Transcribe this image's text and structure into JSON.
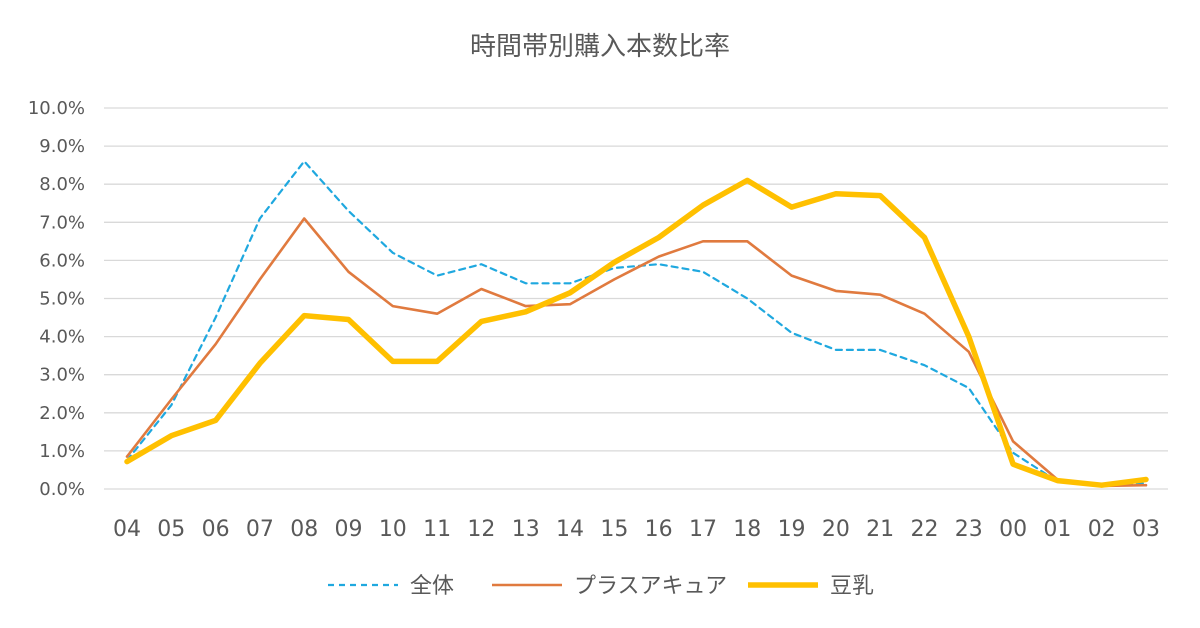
{
  "chart_data": {
    "type": "line",
    "title": "時間帯別購入本数比率",
    "categories": [
      "04",
      "05",
      "06",
      "07",
      "08",
      "09",
      "10",
      "11",
      "12",
      "13",
      "14",
      "15",
      "16",
      "17",
      "18",
      "19",
      "20",
      "21",
      "22",
      "23",
      "00",
      "01",
      "02",
      "03"
    ],
    "ylim": [
      0,
      10
    ],
    "yticks": [
      "0.0%",
      "1.0%",
      "2.0%",
      "3.0%",
      "4.0%",
      "5.0%",
      "6.0%",
      "7.0%",
      "8.0%",
      "9.0%",
      "10.0%"
    ],
    "grid": true,
    "legend_position": "bottom",
    "series": [
      {
        "name": "全体",
        "color": "#1fa8df",
        "style": "dashed",
        "values": [
          0.75,
          2.2,
          4.5,
          7.1,
          8.6,
          7.3,
          6.2,
          5.6,
          5.9,
          5.4,
          5.4,
          5.8,
          5.9,
          5.7,
          5.0,
          4.1,
          3.65,
          3.65,
          3.25,
          2.65,
          0.95,
          0.2,
          0.08,
          0.15
        ]
      },
      {
        "name": "プラスアキュア",
        "color": "#e07a3f",
        "style": "solid",
        "values": [
          0.85,
          2.35,
          3.8,
          5.5,
          7.1,
          5.7,
          4.8,
          4.6,
          5.25,
          4.8,
          4.85,
          5.5,
          6.1,
          6.5,
          6.5,
          5.6,
          5.2,
          5.1,
          4.6,
          3.6,
          1.25,
          0.25,
          0.08,
          0.1
        ]
      },
      {
        "name": "豆乳",
        "color": "#ffc000",
        "style": "thick",
        "values": [
          0.72,
          1.4,
          1.8,
          3.3,
          4.55,
          4.45,
          3.35,
          3.35,
          4.4,
          4.65,
          5.15,
          5.95,
          6.6,
          7.45,
          8.1,
          7.4,
          7.75,
          7.7,
          6.6,
          4.0,
          0.65,
          0.22,
          0.1,
          0.25
        ]
      }
    ]
  }
}
